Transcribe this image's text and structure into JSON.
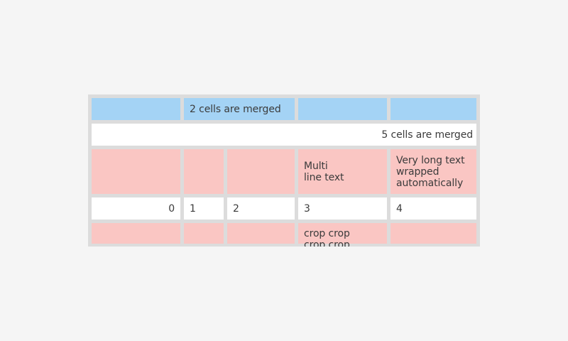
{
  "colors": {
    "page": "#f5f5f5",
    "frame": "#dcdcdc",
    "blue": "#a4d3f5",
    "pink": "#fac6c3",
    "cellwhite": "#ffffff",
    "text": "#3b3b3b"
  },
  "table": {
    "rows": [
      {
        "variant": "blue",
        "cells": [
          {
            "text": ""
          },
          {
            "text": "2 cells are merged",
            "colspan": 2
          },
          {
            "text": ""
          },
          {
            "text": ""
          }
        ]
      },
      {
        "variant": "white",
        "cells": [
          {
            "text": "5 cells are merged",
            "colspan": 5,
            "align": "right"
          }
        ]
      },
      {
        "variant": "pink",
        "cells": [
          {
            "text": ""
          },
          {
            "text": ""
          },
          {
            "text": ""
          },
          {
            "text": "Multi\nline text"
          },
          {
            "text": "Very long text wrapped automatically"
          }
        ]
      },
      {
        "variant": "white",
        "cells": [
          {
            "text": "0",
            "align": "right"
          },
          {
            "text": "1"
          },
          {
            "text": "2"
          },
          {
            "text": "3"
          },
          {
            "text": "4"
          }
        ]
      },
      {
        "variant": "pink",
        "cells": [
          {
            "text": ""
          },
          {
            "text": ""
          },
          {
            "text": ""
          },
          {
            "text": "crop crop crop crop crop crop",
            "clipped": true
          },
          {
            "text": ""
          }
        ]
      }
    ]
  }
}
